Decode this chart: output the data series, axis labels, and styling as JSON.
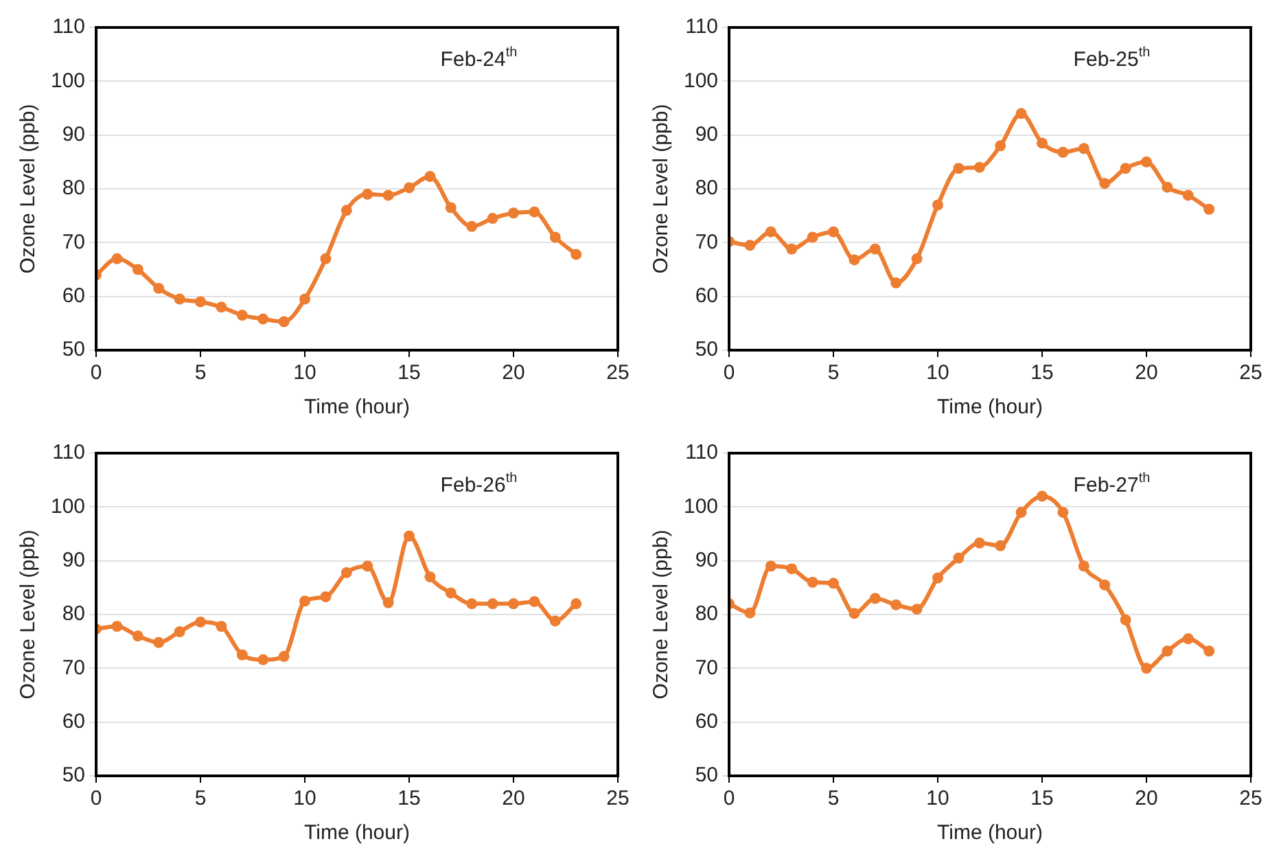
{
  "chart_data": [
    {
      "type": "line",
      "title": "Feb-24$^{th}$",
      "xlabel": "Time (hour)",
      "ylabel": "Ozone Level (ppb)",
      "x": [
        0,
        1,
        2,
        3,
        4,
        5,
        6,
        7,
        8,
        9,
        10,
        11,
        12,
        13,
        14,
        15,
        16,
        17,
        18,
        19,
        20,
        21,
        22,
        23
      ],
      "series": [
        {
          "color": "#ed7d31",
          "values": [
            64,
            67,
            65,
            61.5,
            59.5,
            59,
            58,
            56.5,
            55.8,
            55.3,
            59.5,
            67,
            76,
            79,
            78.8,
            80.2,
            82.3,
            76.5,
            73,
            74.5,
            75.5,
            75.7,
            71,
            67.8
          ]
        }
      ],
      "xlim": [
        0,
        25
      ],
      "xticks": [
        0,
        5,
        10,
        15,
        20,
        25
      ],
      "ylim": [
        50,
        110
      ],
      "yticks": [
        50,
        60,
        70,
        80,
        90,
        100,
        110
      ],
      "grid": "y",
      "marker": "circle",
      "line_style": "solid"
    },
    {
      "type": "line",
      "title": "Feb-25$^{th}$",
      "xlabel": "Time (hour)",
      "ylabel": "Ozone Level (ppb)",
      "x": [
        0,
        1,
        2,
        3,
        4,
        5,
        6,
        7,
        8,
        9,
        10,
        11,
        12,
        13,
        14,
        15,
        16,
        17,
        18,
        19,
        20,
        21,
        22,
        23
      ],
      "series": [
        {
          "color": "#ed7d31",
          "values": [
            70.2,
            69.5,
            72,
            68.8,
            71,
            72,
            66.8,
            68.8,
            62.5,
            67,
            77,
            83.8,
            84,
            88,
            94,
            88.5,
            86.8,
            87.5,
            81,
            83.8,
            85,
            80.3,
            78.8,
            76.2
          ]
        }
      ],
      "xlim": [
        0,
        25
      ],
      "xticks": [
        0,
        5,
        10,
        15,
        20,
        25
      ],
      "ylim": [
        50,
        110
      ],
      "yticks": [
        50,
        60,
        70,
        80,
        90,
        100,
        110
      ],
      "grid": "y",
      "marker": "circle",
      "line_style": "solid"
    },
    {
      "type": "line",
      "title": "Feb-26$^{th}$",
      "xlabel": "Time (hour)",
      "ylabel": "Ozone Level (ppb)",
      "x": [
        0,
        1,
        2,
        3,
        4,
        5,
        6,
        7,
        8,
        9,
        10,
        11,
        12,
        13,
        14,
        15,
        16,
        17,
        18,
        19,
        20,
        21,
        22,
        23
      ],
      "series": [
        {
          "color": "#ed7d31",
          "values": [
            77.3,
            77.8,
            76,
            74.8,
            76.8,
            78.6,
            77.8,
            72.5,
            71.6,
            72.2,
            82.5,
            83.3,
            87.8,
            89,
            82.2,
            94.6,
            87,
            84,
            82,
            82,
            82,
            82.4,
            78.8,
            82
          ]
        }
      ],
      "xlim": [
        0,
        25
      ],
      "xticks": [
        0,
        5,
        10,
        15,
        20,
        25
      ],
      "ylim": [
        50,
        110
      ],
      "yticks": [
        50,
        60,
        70,
        80,
        90,
        100,
        110
      ],
      "grid": "y",
      "marker": "circle",
      "line_style": "solid"
    },
    {
      "type": "line",
      "title": "Feb-27$^{th}$",
      "xlabel": "Time (hour)",
      "ylabel": "Ozone Level (ppb)",
      "x": [
        0,
        1,
        2,
        3,
        4,
        5,
        6,
        7,
        8,
        9,
        10,
        11,
        12,
        13,
        14,
        15,
        16,
        17,
        18,
        19,
        20,
        21,
        22,
        23
      ],
      "series": [
        {
          "color": "#ed7d31",
          "values": [
            82,
            80.3,
            89,
            88.5,
            86,
            85.8,
            80.2,
            83,
            81.8,
            81,
            86.8,
            90.5,
            93.3,
            92.8,
            99,
            102,
            99,
            89,
            85.5,
            79,
            70,
            73.2,
            75.5,
            73.2
          ]
        }
      ],
      "xlim": [
        0,
        25
      ],
      "xticks": [
        0,
        5,
        10,
        15,
        20,
        25
      ],
      "ylim": [
        50,
        110
      ],
      "yticks": [
        50,
        60,
        70,
        80,
        90,
        100,
        110
      ],
      "grid": "y",
      "marker": "circle",
      "line_style": "solid"
    }
  ]
}
